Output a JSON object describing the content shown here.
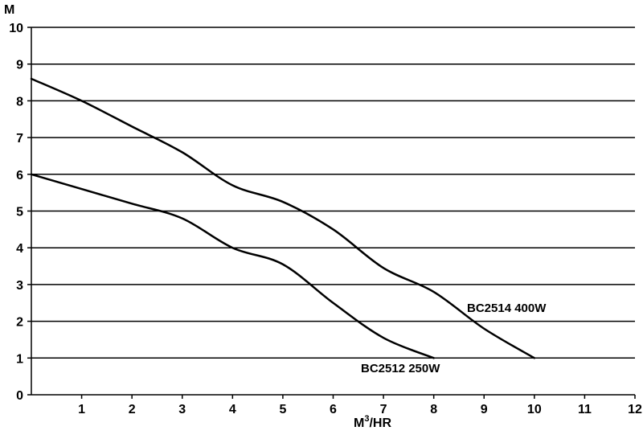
{
  "chart_data": {
    "type": "line",
    "ylabel": "M",
    "xlabel": "M",
    "xlabel_sup": "3",
    "xlabel_suffix": "/HR",
    "xlim": [
      0,
      12
    ],
    "ylim": [
      0,
      10
    ],
    "x_ticks": [
      "1",
      "2",
      "3",
      "4",
      "5",
      "6",
      "7",
      "8",
      "9",
      "10",
      "11",
      "12"
    ],
    "y_ticks": [
      "0",
      "1",
      "2",
      "3",
      "4",
      "5",
      "6",
      "7",
      "8",
      "9",
      "10"
    ],
    "grid": true,
    "series": [
      {
        "name": "BC2514  400W",
        "x": [
          0,
          1,
          2,
          3,
          4,
          5,
          6,
          7,
          8,
          9,
          10
        ],
        "y": [
          8.6,
          8.0,
          7.3,
          6.6,
          5.7,
          5.25,
          4.5,
          3.45,
          2.8,
          1.8,
          1.0
        ]
      },
      {
        "name": "BC2512  250W",
        "x": [
          0,
          1,
          2,
          3,
          4,
          5,
          6,
          7,
          8
        ],
        "y": [
          6.0,
          5.6,
          5.2,
          4.8,
          4.0,
          3.55,
          2.5,
          1.55,
          1.0
        ]
      }
    ]
  }
}
